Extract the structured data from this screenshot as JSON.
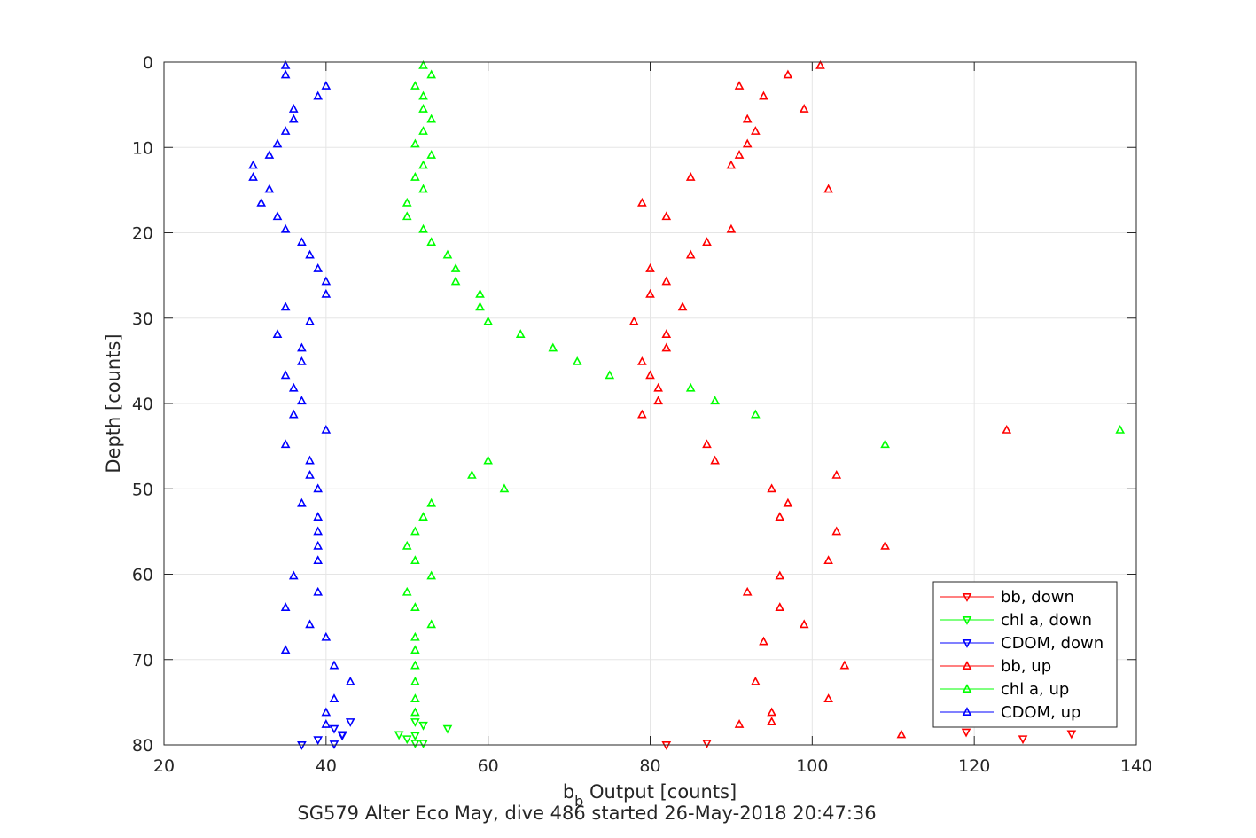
{
  "chart_data": {
    "type": "scatter",
    "title": "",
    "subtitle": "SG579 Alter Eco May, dive 486 started 26-May-2018 20:47:36",
    "xlabel_main": "b",
    "xlabel_sub": "b",
    "xlabel_rest": " Output [counts]",
    "ylabel": "Depth [counts]",
    "xlim": [
      20,
      140
    ],
    "ylim": [
      0,
      80
    ],
    "y_reversed": true,
    "grid": true,
    "xticks": [
      20,
      40,
      60,
      80,
      100,
      120,
      140
    ],
    "yticks": [
      0,
      10,
      20,
      30,
      40,
      50,
      60,
      70,
      80
    ],
    "legend_position": "bottom-right",
    "colors": {
      "bb": "#ff0000",
      "chl": "#00ff00",
      "cdom": "#0000ff",
      "grid": "#e5e5e5",
      "axis": "#262626"
    },
    "series": [
      {
        "name": "bb, down",
        "marker": "triangle-down",
        "color": "#ff0000",
        "points": [
          [
            82,
            80
          ],
          [
            87,
            79.8
          ],
          [
            119,
            78.5
          ],
          [
            126,
            79.3
          ],
          [
            132,
            78.7
          ]
        ]
      },
      {
        "name": "chl a, down",
        "marker": "triangle-down",
        "color": "#00ff00",
        "points": [
          [
            49,
            78.8
          ],
          [
            50,
            79.3
          ],
          [
            51,
            79.8
          ],
          [
            52,
            79.8
          ],
          [
            51,
            78.9
          ],
          [
            55,
            78.1
          ],
          [
            52,
            77.7
          ],
          [
            51,
            77.3
          ]
        ]
      },
      {
        "name": "CDOM, down",
        "marker": "triangle-down",
        "color": "#0000ff",
        "points": [
          [
            37,
            80
          ],
          [
            39,
            79.4
          ],
          [
            41,
            79.9
          ],
          [
            42,
            78.8
          ],
          [
            41,
            78.1
          ],
          [
            43,
            77.3
          ],
          [
            42,
            78.9
          ]
        ]
      },
      {
        "name": "bb, up",
        "marker": "triangle-up",
        "color": "#ff0000",
        "points": [
          [
            101,
            0.4
          ],
          [
            97,
            1.5
          ],
          [
            91,
            2.8
          ],
          [
            94,
            4.0
          ],
          [
            99,
            5.5
          ],
          [
            92,
            6.7
          ],
          [
            93,
            8.1
          ],
          [
            92,
            9.6
          ],
          [
            91,
            10.9
          ],
          [
            90,
            12.1
          ],
          [
            85,
            13.5
          ],
          [
            102,
            14.9
          ],
          [
            79,
            16.5
          ],
          [
            82,
            18.1
          ],
          [
            90,
            19.6
          ],
          [
            87,
            21.1
          ],
          [
            85,
            22.6
          ],
          [
            80,
            24.2
          ],
          [
            82,
            25.7
          ],
          [
            80,
            27.2
          ],
          [
            84,
            28.7
          ],
          [
            78,
            30.4
          ],
          [
            82,
            31.9
          ],
          [
            82,
            33.5
          ],
          [
            79,
            35.1
          ],
          [
            80,
            36.7
          ],
          [
            81,
            38.2
          ],
          [
            81,
            39.7
          ],
          [
            79,
            41.3
          ],
          [
            124,
            43.1
          ],
          [
            87,
            44.8
          ],
          [
            88,
            46.7
          ],
          [
            103,
            48.4
          ],
          [
            95,
            50.0
          ],
          [
            97,
            51.7
          ],
          [
            96,
            53.3
          ],
          [
            103,
            55.0
          ],
          [
            109,
            56.7
          ],
          [
            102,
            58.4
          ],
          [
            96,
            60.2
          ],
          [
            92,
            62.1
          ],
          [
            96,
            63.9
          ],
          [
            99,
            65.9
          ],
          [
            94,
            67.9
          ],
          [
            104,
            70.7
          ],
          [
            93,
            72.6
          ],
          [
            102,
            74.6
          ],
          [
            95,
            76.2
          ],
          [
            95,
            77.3
          ],
          [
            91,
            77.6
          ],
          [
            111,
            78.8
          ]
        ]
      },
      {
        "name": "chl a, up",
        "marker": "triangle-up",
        "color": "#00ff00",
        "points": [
          [
            52,
            0.4
          ],
          [
            53,
            1.5
          ],
          [
            51,
            2.8
          ],
          [
            52,
            4.0
          ],
          [
            52,
            5.5
          ],
          [
            53,
            6.7
          ],
          [
            52,
            8.1
          ],
          [
            51,
            9.6
          ],
          [
            53,
            10.9
          ],
          [
            52,
            12.1
          ],
          [
            51,
            13.5
          ],
          [
            52,
            14.9
          ],
          [
            50,
            16.5
          ],
          [
            50,
            18.1
          ],
          [
            52,
            19.6
          ],
          [
            53,
            21.1
          ],
          [
            55,
            22.6
          ],
          [
            56,
            24.2
          ],
          [
            56,
            25.7
          ],
          [
            59,
            27.2
          ],
          [
            59,
            28.7
          ],
          [
            60,
            30.4
          ],
          [
            64,
            31.9
          ],
          [
            68,
            33.5
          ],
          [
            71,
            35.1
          ],
          [
            75,
            36.7
          ],
          [
            85,
            38.2
          ],
          [
            88,
            39.7
          ],
          [
            93,
            41.3
          ],
          [
            138,
            43.1
          ],
          [
            109,
            44.8
          ],
          [
            60,
            46.7
          ],
          [
            58,
            48.4
          ],
          [
            62,
            50.0
          ],
          [
            53,
            51.7
          ],
          [
            52,
            53.3
          ],
          [
            51,
            55.0
          ],
          [
            50,
            56.7
          ],
          [
            51,
            58.4
          ],
          [
            53,
            60.2
          ],
          [
            50,
            62.1
          ],
          [
            51,
            63.9
          ],
          [
            53,
            65.9
          ],
          [
            51,
            67.4
          ],
          [
            51,
            68.9
          ],
          [
            51,
            70.7
          ],
          [
            51,
            72.6
          ],
          [
            51,
            74.6
          ],
          [
            51,
            76.2
          ]
        ]
      },
      {
        "name": "CDOM, up",
        "marker": "triangle-up",
        "color": "#0000ff",
        "points": [
          [
            35,
            0.4
          ],
          [
            35,
            1.5
          ],
          [
            40,
            2.8
          ],
          [
            39,
            4.0
          ],
          [
            36,
            5.5
          ],
          [
            36,
            6.7
          ],
          [
            35,
            8.1
          ],
          [
            34,
            9.6
          ],
          [
            33,
            10.9
          ],
          [
            31,
            12.1
          ],
          [
            31,
            13.5
          ],
          [
            33,
            14.9
          ],
          [
            32,
            16.5
          ],
          [
            34,
            18.1
          ],
          [
            35,
            19.6
          ],
          [
            37,
            21.1
          ],
          [
            38,
            22.6
          ],
          [
            39,
            24.2
          ],
          [
            40,
            25.7
          ],
          [
            40,
            27.2
          ],
          [
            35,
            28.7
          ],
          [
            38,
            30.4
          ],
          [
            34,
            31.9
          ],
          [
            37,
            33.5
          ],
          [
            37,
            35.1
          ],
          [
            35,
            36.7
          ],
          [
            36,
            38.2
          ],
          [
            37,
            39.7
          ],
          [
            36,
            41.3
          ],
          [
            40,
            43.1
          ],
          [
            35,
            44.8
          ],
          [
            38,
            46.7
          ],
          [
            38,
            48.4
          ],
          [
            39,
            50.0
          ],
          [
            37,
            51.7
          ],
          [
            39,
            53.3
          ],
          [
            39,
            55.0
          ],
          [
            39,
            56.7
          ],
          [
            39,
            58.4
          ],
          [
            36,
            60.2
          ],
          [
            39,
            62.1
          ],
          [
            35,
            63.9
          ],
          [
            38,
            65.9
          ],
          [
            40,
            67.4
          ],
          [
            35,
            68.9
          ],
          [
            41,
            70.7
          ],
          [
            43,
            72.6
          ],
          [
            41,
            74.6
          ],
          [
            40,
            76.2
          ],
          [
            40,
            77.6
          ]
        ]
      }
    ]
  }
}
